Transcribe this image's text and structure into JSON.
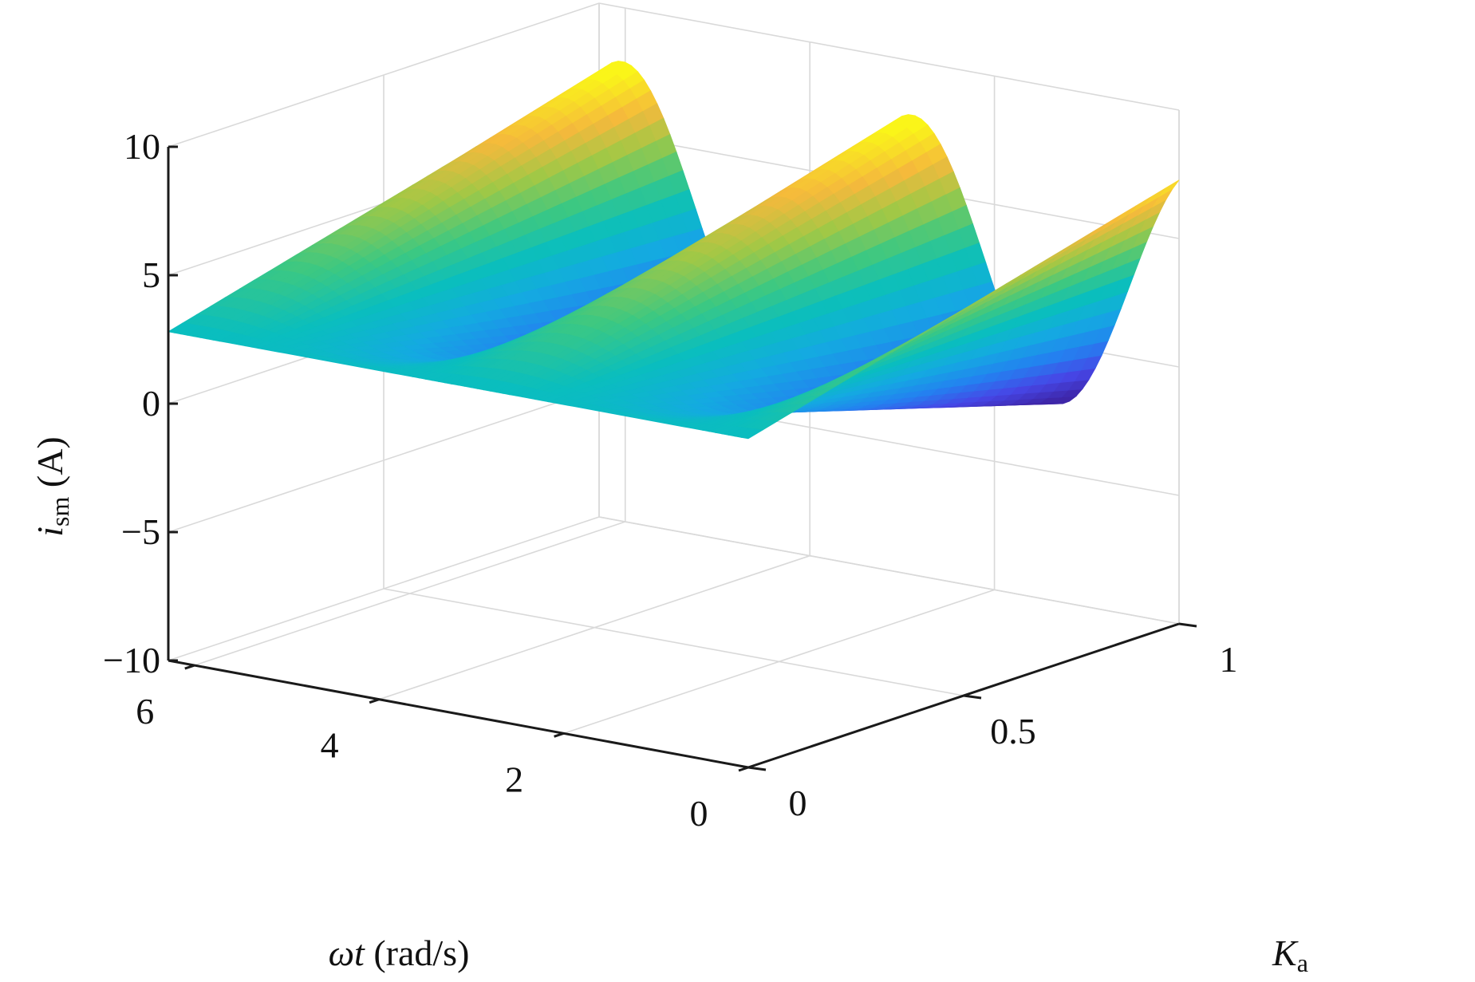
{
  "chart_data": {
    "type": "surface",
    "title": "",
    "xlabel": {
      "sym": "ωt",
      "rest": " (rad/s)"
    },
    "ylabel": {
      "sym": "K",
      "sub": "a"
    },
    "zlabel": {
      "sym": "i",
      "sub": "sm",
      "rest": " (A)"
    },
    "xlim": [
      0,
      6.283
    ],
    "ylim": [
      0,
      1
    ],
    "zlim": [
      -10,
      10
    ],
    "x_ticks": [
      0,
      2,
      4,
      6
    ],
    "x_tick_labels": [
      "0",
      "2",
      "4",
      "6"
    ],
    "y_ticks": [
      0,
      0.5,
      1
    ],
    "y_tick_labels": [
      "0",
      "0.5",
      "1"
    ],
    "z_ticks": [
      -10,
      -5,
      0,
      5,
      10
    ],
    "z_tick_labels": [
      "−10",
      "−5",
      "0",
      "5",
      "10"
    ],
    "grid": true,
    "colormap": "parula",
    "function": "i_sm = 2.8 + K_a * 5.1 * cos(2*(ωt + 0.25))",
    "surface_samples": {
      "omega_t": [
        0,
        1.57,
        3.14,
        4.71,
        6.28
      ],
      "K_a": [
        0,
        0.5,
        1
      ],
      "i_sm": [
        [
          2.8,
          2.8,
          2.8,
          2.8,
          2.8
        ],
        [
          5.0,
          0.6,
          5.0,
          0.6,
          5.0
        ],
        [
          7.3,
          -1.7,
          7.3,
          -1.7,
          7.3
        ]
      ]
    }
  }
}
